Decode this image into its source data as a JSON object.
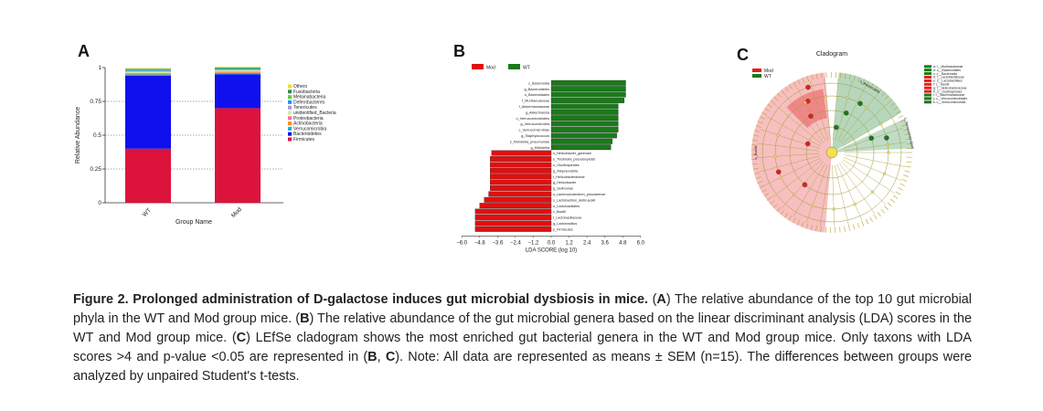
{
  "panels": {
    "a": {
      "letter": "A"
    },
    "b": {
      "letter": "B"
    },
    "c": {
      "letter": "C"
    }
  },
  "chart_data": [
    {
      "type": "bar",
      "stacked": true,
      "panel": "A",
      "categories": [
        "WT",
        "Mod"
      ],
      "xlabel": "Group Name",
      "ylabel": "Relative Abundance",
      "ylim": [
        0,
        1
      ],
      "yticks": [
        "0",
        "0.25",
        "0.5",
        "0.75",
        "1"
      ],
      "grid": "dotted horizontal at 0.25, 0.5, 0.75",
      "legend_position": "right",
      "series": [
        {
          "name": "Firmicutes",
          "color": "#dc143c",
          "values": [
            0.4,
            0.7
          ]
        },
        {
          "name": "Bacteroidetes",
          "color": "#1010ee",
          "values": [
            0.54,
            0.25
          ]
        },
        {
          "name": "Verrucomicrobia",
          "color": "#22aadd",
          "values": [
            0.01,
            0.01
          ]
        },
        {
          "name": "Actinobacteria",
          "color": "#ff8c1a",
          "values": [
            0.005,
            0.005
          ]
        },
        {
          "name": "Proteobacteria",
          "color": "#ff6b9a",
          "values": [
            0.005,
            0.005
          ]
        },
        {
          "name": "unidentified_Bacteria",
          "color": "#c8f0a0",
          "values": [
            0.01,
            0.01
          ]
        },
        {
          "name": "Tenericutes",
          "color": "#b090e0",
          "values": [
            0.005,
            0.005
          ]
        },
        {
          "name": "Deferribacteres",
          "color": "#1e90ff",
          "values": [
            0.005,
            0.005
          ]
        },
        {
          "name": "Melainabacteria",
          "color": "#66cc33",
          "values": [
            0.005,
            0.005
          ]
        },
        {
          "name": "Fusobacteria",
          "color": "#2e8b57",
          "values": [
            0.005,
            0.005
          ]
        },
        {
          "name": "Others",
          "color": "#f0e020",
          "values": [
            0.005,
            0.005
          ]
        }
      ]
    },
    {
      "type": "bar",
      "orientation": "horizontal",
      "panel": "B",
      "xlabel": "LDA SCORE (log 10)",
      "xlim": [
        -6.0,
        6.0
      ],
      "xticks": [
        "−6.0",
        "−4.8",
        "−3.6",
        "−2.4",
        "−1.2",
        "0.0",
        "1.2",
        "2.4",
        "3.6",
        "4.8",
        "6.0"
      ],
      "legend": [
        {
          "name": "Mod",
          "color": "#e01010"
        },
        {
          "name": "WT",
          "color": "#1a7a1a"
        }
      ],
      "bars": [
        {
          "label": "c_Bacteroidia",
          "value": 5.0,
          "group": "WT"
        },
        {
          "label": "g_Bacteroidetes",
          "value": 5.0,
          "group": "WT"
        },
        {
          "label": "o_Bacteroidales",
          "value": 5.0,
          "group": "WT"
        },
        {
          "label": "f_Muribaculaceae",
          "value": 4.9,
          "group": "WT"
        },
        {
          "label": "f_Akkermansiaceae",
          "value": 4.5,
          "group": "WT"
        },
        {
          "label": "g_Akkermansia",
          "value": 4.5,
          "group": "WT"
        },
        {
          "label": "o_Verrucomicrobiales",
          "value": 4.5,
          "group": "WT"
        },
        {
          "label": "g_Verrucomicrobia",
          "value": 4.5,
          "group": "WT"
        },
        {
          "label": "c_Verrucomicrobiae",
          "value": 4.5,
          "group": "WT"
        },
        {
          "label": "g_Staphylococcus",
          "value": 4.4,
          "group": "WT"
        },
        {
          "label": "s_Klebsiella_pneumoniae",
          "value": 4.1,
          "group": "WT"
        },
        {
          "label": "g_Klebsiella",
          "value": 4.0,
          "group": "WT"
        },
        {
          "label": "s_Helicobacter_ganmani",
          "value": -4.0,
          "group": "Mod"
        },
        {
          "label": "s_Tricibrella_pseudoxylosis",
          "value": -4.1,
          "group": "Mod"
        },
        {
          "label": "o_Oscillospirales",
          "value": -4.1,
          "group": "Mod"
        },
        {
          "label": "g_Alloprevotella",
          "value": -4.1,
          "group": "Mod"
        },
        {
          "label": "f_Helicobacteraceae",
          "value": -4.1,
          "group": "Mod"
        },
        {
          "label": "g_Helicobacter",
          "value": -4.1,
          "group": "Mod"
        },
        {
          "label": "g_Selimonas",
          "value": -4.1,
          "group": "Mod"
        },
        {
          "label": "s_Lachnoclostridium_phocaeense",
          "value": -4.2,
          "group": "Mod"
        },
        {
          "label": "s_Lactobacillus_deibrueckii",
          "value": -4.5,
          "group": "Mod"
        },
        {
          "label": "o_Lactobacillales",
          "value": -4.8,
          "group": "Mod"
        },
        {
          "label": "c_Bacilli",
          "value": -5.1,
          "group": "Mod"
        },
        {
          "label": "f_Lactobacillaceae",
          "value": -5.1,
          "group": "Mod"
        },
        {
          "label": "g_Lactobacillus",
          "value": -5.1,
          "group": "Mod"
        },
        {
          "label": "p_Firmicutes",
          "value": -5.1,
          "group": "Mod"
        }
      ]
    }
  ],
  "cladogram": {
    "title": "Cladogram",
    "legend": [
      {
        "name": "Mod",
        "color": "#e02020"
      },
      {
        "name": "WT",
        "color": "#1a7a1a"
      }
    ],
    "arc_labels": [
      "c_Bacilli",
      "c_Bacteroidia",
      "c_Verrucomicrobiae"
    ],
    "key_list": [
      "a: f__Muribaculaceae",
      "b: o__Bacteroidales",
      "c: c__Bacteroidia",
      "d: f__Lactobacillaceae",
      "e: o__Lactobacillales",
      "f: c__Bacilli",
      "g: f__Helicobacteraceae",
      "h: o__Oscillospirales",
      "i: f__Akkermansiaceae",
      "j: o__Verrucomicrobiales",
      "k: c__Verrucomicrobiae"
    ],
    "key_colors": [
      "#1a7a1a",
      "#1a7a1a",
      "#1a7a1a",
      "#e02020",
      "#e02020",
      "#e02020",
      "#e02020",
      "#e02020",
      "#1a7a1a",
      "#1a7a1a",
      "#1a7a1a"
    ]
  },
  "caption": {
    "title": "Figure 2. Prolonged administration of D-galactose induces gut microbial dysbiosis in mice.",
    "p1": " (",
    "l1": "A",
    "p2": ") The relative abundance of the top 10 gut microbial phyla in the WT and Mod group mice. (",
    "l2": "B",
    "p3": ") The relative abundance of the gut microbial genera based on the linear discriminant analysis (LDA) scores in the WT and Mod group mice. (",
    "l3": "C",
    "p4": ") LEfSe cladogram shows the most enriched gut bacterial genera in the WT and Mod group mice. Only taxons with LDA scores >4 and p-value <0.05 are represented in (",
    "l4": "B",
    "p5": ", ",
    "l5": "C",
    "p6": "). Note: All data are represented as means ± SEM (n=15). The differences between groups were analyzed by unpaired Student's t-tests."
  }
}
